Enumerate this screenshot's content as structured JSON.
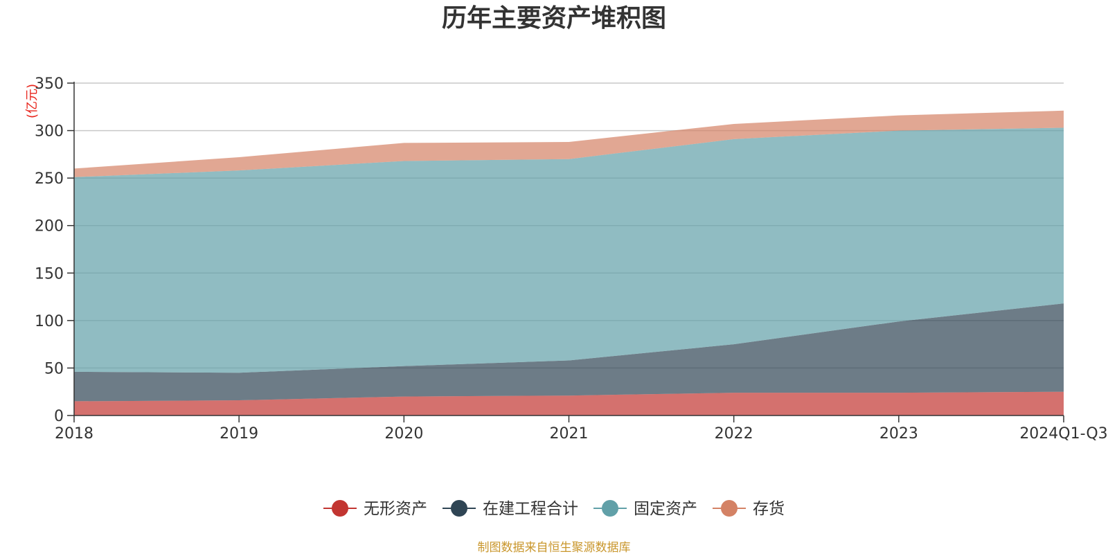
{
  "chart_data": {
    "type": "area",
    "stacked": true,
    "title": "历年主要资产堆积图",
    "unit_label": "(亿元)",
    "categories": [
      "2018",
      "2019",
      "2020",
      "2021",
      "2022",
      "2023",
      "2024Q1-Q3"
    ],
    "ylim": [
      0,
      350
    ],
    "yticks": [
      0,
      50,
      100,
      150,
      200,
      250,
      300,
      350
    ],
    "grid": true,
    "legend_position": "bottom",
    "series": [
      {
        "name": "无形资产",
        "color": "#c23531",
        "values": [
          15,
          16,
          20,
          21,
          24,
          24,
          25
        ]
      },
      {
        "name": "在建工程合计",
        "color": "#2f4554",
        "values": [
          31,
          29,
          32,
          37,
          51,
          75,
          93
        ]
      },
      {
        "name": "固定资产",
        "color": "#61a0a8",
        "values": [
          205,
          213,
          216,
          212,
          216,
          201,
          185
        ]
      },
      {
        "name": "存货",
        "color": "#d48265",
        "values": [
          9,
          14,
          19,
          18,
          16,
          16,
          18
        ]
      }
    ],
    "source": "制图数据来自恒生聚源数据库"
  }
}
